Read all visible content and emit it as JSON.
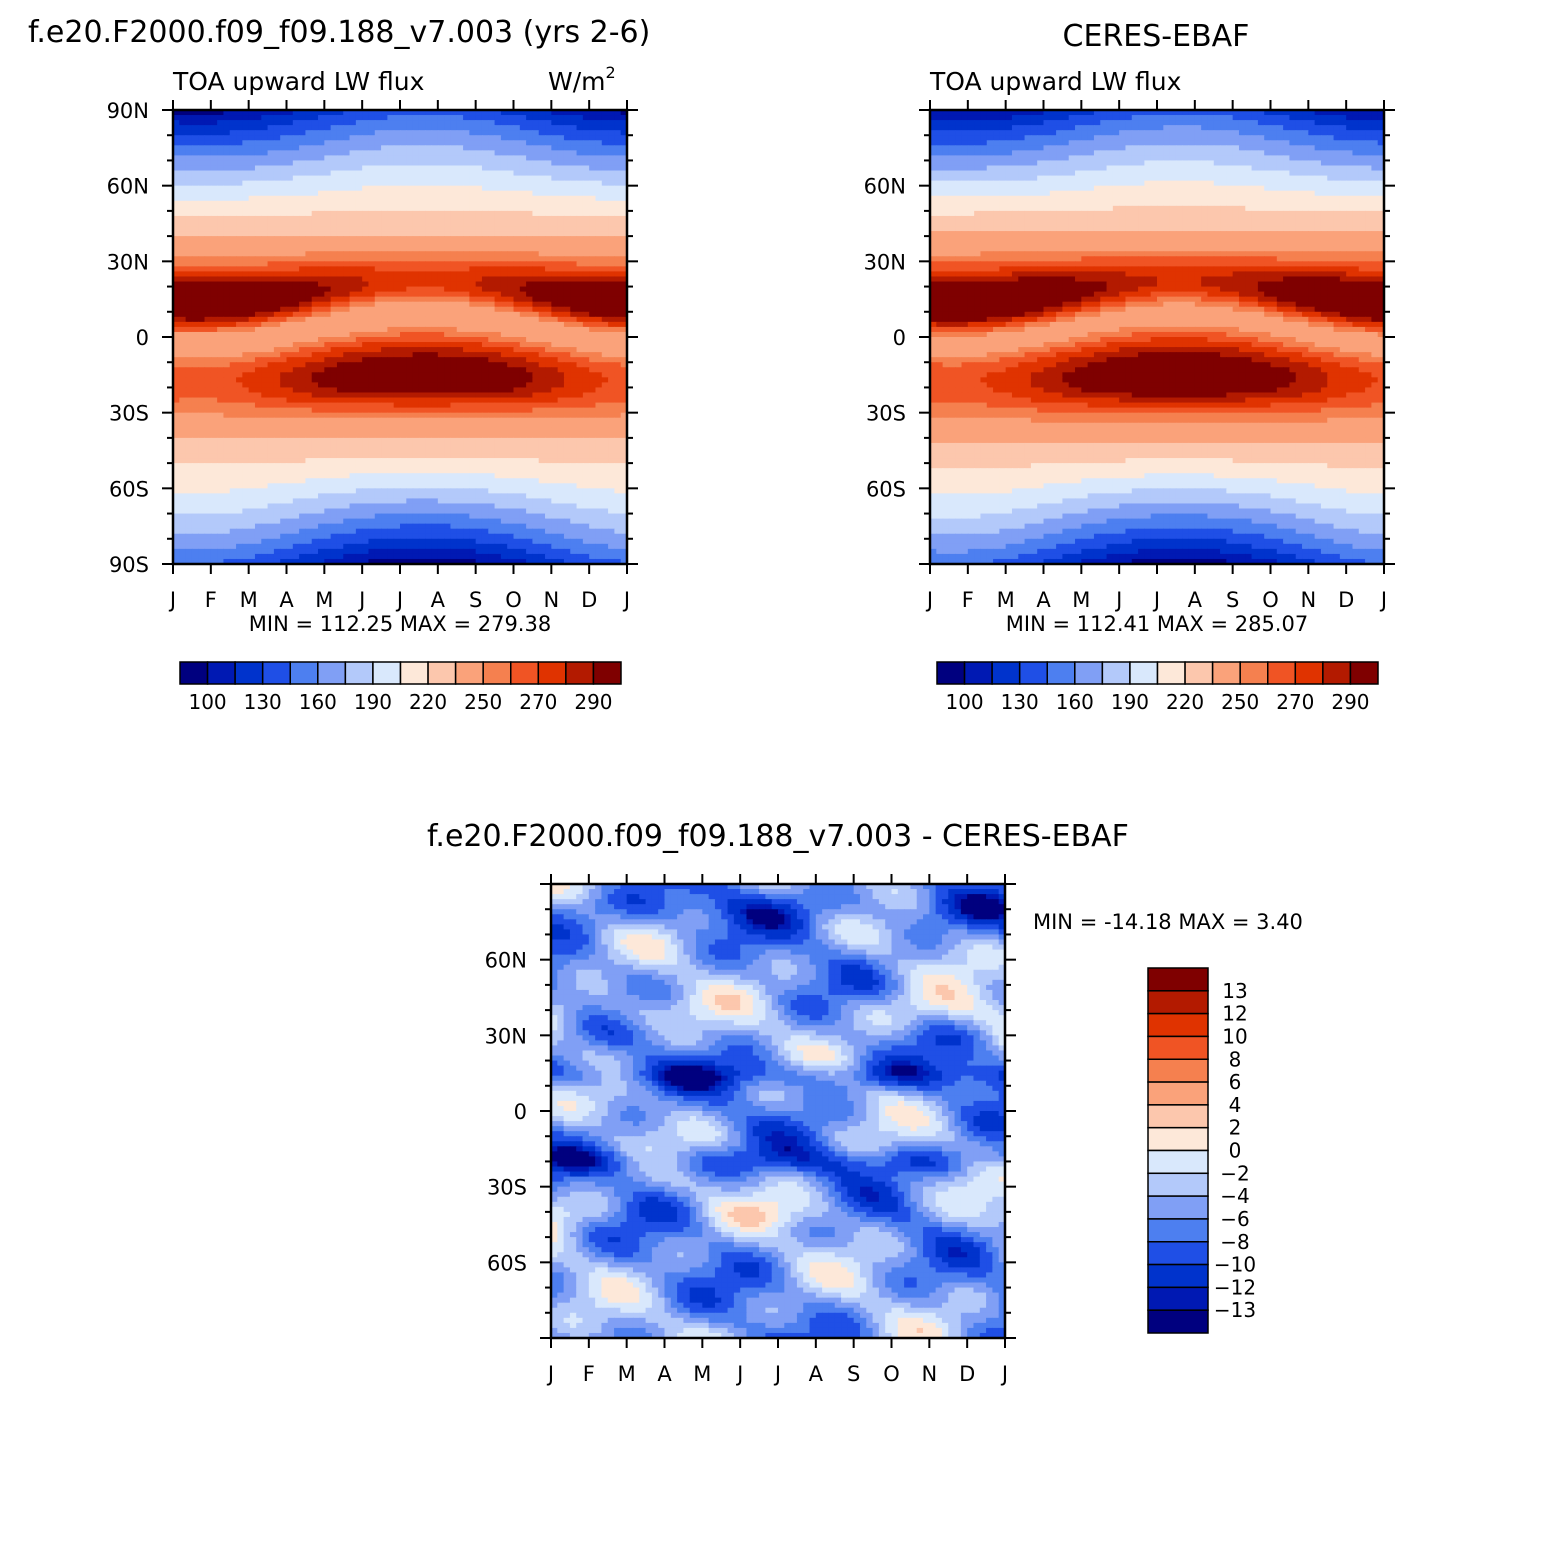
{
  "palettes": {
    "main": [
      "#00007f",
      "#0019b3",
      "#0033cc",
      "#1f4fe6",
      "#4d7ff0",
      "#809ff5",
      "#b3c9fa",
      "#d9e8fc",
      "#fde8d9",
      "#fcc7ad",
      "#faa27a",
      "#f5804f",
      "#f05424",
      "#e03300",
      "#b31a00",
      "#7f0000"
    ],
    "diff": [
      "#00007f",
      "#0019b3",
      "#0033cc",
      "#1f4fe6",
      "#4d7ff0",
      "#809ff5",
      "#b3c9fa",
      "#d9e8fc",
      "#fde8d9",
      "#fcc7ad",
      "#faa27a",
      "#f5804f",
      "#f05424",
      "#e03300",
      "#b31a00",
      "#7f0000"
    ]
  },
  "chart_data": [
    {
      "id": "model",
      "type": "heatmap",
      "title": "f.e20.F2000.f09_f09.188_v7.003 (yrs 2-6)",
      "left_label": "TOA upward LW flux",
      "units_label": "W/m",
      "units_sup": "2",
      "x_labels": [
        "J",
        "F",
        "M",
        "A",
        "M",
        "J",
        "J",
        "A",
        "S",
        "O",
        "N",
        "D",
        "J"
      ],
      "y_labels": [
        "90N",
        "60N",
        "30N",
        "0",
        "30S",
        "60S",
        "90S"
      ],
      "stats": "MIN = 112.25  MAX = 279.38",
      "colorbar_labels": [
        "100",
        "130",
        "160",
        "190",
        "220",
        "250",
        "270",
        "290"
      ],
      "levels": [
        100,
        115,
        130,
        145,
        160,
        175,
        190,
        205,
        220,
        235,
        250,
        260,
        270,
        280,
        290
      ],
      "description": "Zonal-mean TOA upward LW flux by month and latitude"
    },
    {
      "id": "obs",
      "type": "heatmap",
      "title": "CERES-EBAF",
      "left_label": "TOA upward LW flux",
      "x_labels": [
        "J",
        "F",
        "M",
        "A",
        "M",
        "J",
        "J",
        "A",
        "S",
        "O",
        "N",
        "D",
        "J"
      ],
      "y_labels": [
        "60N",
        "30N",
        "0",
        "30S",
        "60S"
      ],
      "stats": "MIN = 112.41  MAX = 285.07",
      "colorbar_labels": [
        "100",
        "130",
        "160",
        "190",
        "220",
        "250",
        "270",
        "290"
      ],
      "levels": [
        100,
        115,
        130,
        145,
        160,
        175,
        190,
        205,
        220,
        235,
        250,
        260,
        270,
        280,
        290
      ]
    },
    {
      "id": "diff",
      "type": "heatmap",
      "title": "f.e20.F2000.f09_f09.188_v7.003 - CERES-EBAF",
      "x_labels": [
        "J",
        "F",
        "M",
        "A",
        "M",
        "J",
        "J",
        "A",
        "S",
        "O",
        "N",
        "D",
        "J"
      ],
      "y_labels": [
        "60N",
        "30N",
        "0",
        "30S",
        "60S"
      ],
      "stats": "MIN = -14.18 MAX =    3.40",
      "colorbar_labels": [
        "13",
        "12",
        "10",
        "8",
        "6",
        "4",
        "2",
        "0",
        "-2",
        "-4",
        "-6",
        "-8",
        "-10",
        "-12",
        "-13"
      ],
      "levels": [
        -13,
        -12,
        -10,
        -8,
        -6,
        -4,
        -2,
        0,
        2,
        4,
        6,
        8,
        10,
        12,
        13
      ]
    }
  ]
}
